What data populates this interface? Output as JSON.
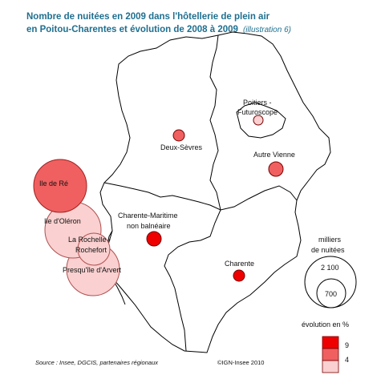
{
  "title": {
    "line1": "Nombre de nuitées en 2009 dans l'hôtellerie de plein air",
    "line2": "en Poitou-Charentes et évolution de 2008 à 2009",
    "note": "(illustration 6)"
  },
  "places": [
    {
      "name": "Ile de Ré",
      "label": "Ile de Ré",
      "class": "high"
    },
    {
      "name": "Ile d'Oléron",
      "label": "Ile d'Oléron",
      "class": "low"
    },
    {
      "name": "La Rochelle - Rochefort",
      "label_line1": "La Rochelle -",
      "label_line2": "Rochefort",
      "class": "low"
    },
    {
      "name": "Presqu'île d'Arvert",
      "label": "Presqu'île d'Arvert",
      "class": "low"
    },
    {
      "name": "Charente-Maritime non balnéaire",
      "label_line1": "Charente-Maritime",
      "label_line2": "non balnéaire",
      "class": "top"
    },
    {
      "name": "Deux-Sèvres",
      "label": "Deux-Sèvres",
      "class": "high"
    },
    {
      "name": "Poitiers - Futuroscope",
      "label_line1": "Poitiers -",
      "label_line2": "Futuroscope",
      "class": "low"
    },
    {
      "name": "Autre Vienne",
      "label": "Autre Vienne",
      "class": "high"
    },
    {
      "name": "Charente",
      "label": "Charente",
      "class": "top"
    }
  ],
  "size_legend": {
    "title_line1": "milliers",
    "title_line2": "de nuitées",
    "values": [
      "2 100",
      "700"
    ]
  },
  "color_legend": {
    "title": "évolution en %",
    "breaks": [
      "9",
      "4"
    ],
    "colors": {
      "top": "#ee0000",
      "high": "#f06060",
      "low": "#fad0d0"
    }
  },
  "footer": {
    "source": "Source : Insee, DGCIS, partenaires régionaux",
    "copyright": "©IGN-Insee 2010"
  }
}
